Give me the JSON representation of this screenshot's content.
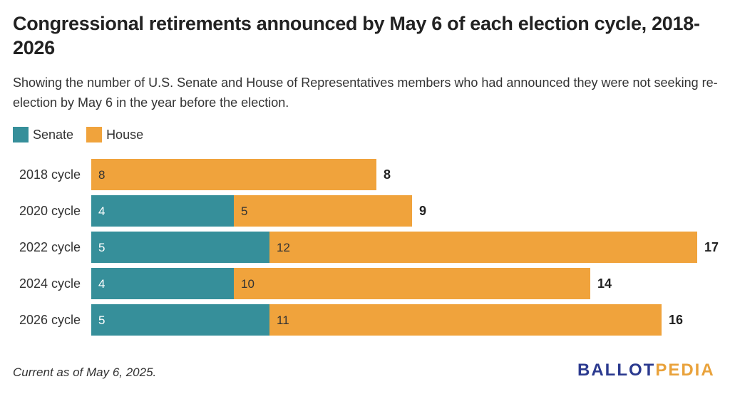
{
  "title": "Congressional retirements announced by May 6 of each election cycle, 2018-2026",
  "subtitle": "Showing the number of U.S. Senate and House of Representatives members who had announced they were not seeking re-election by May 6 in the year before the election.",
  "footnote": "Current as of May 6, 2025.",
  "logo": {
    "part1": "BALLOT",
    "part2": "PEDIA"
  },
  "colors": {
    "senate": "#368f9a",
    "house": "#f0a33c"
  },
  "chart_data": {
    "type": "bar",
    "orientation": "horizontal",
    "stacked": true,
    "categories": [
      "2018 cycle",
      "2020 cycle",
      "2022 cycle",
      "2024 cycle",
      "2026 cycle"
    ],
    "series": [
      {
        "name": "Senate",
        "color": "#368f9a",
        "values": [
          0,
          4,
          5,
          4,
          5
        ]
      },
      {
        "name": "House",
        "color": "#f0a33c",
        "values": [
          8,
          5,
          12,
          10,
          11
        ]
      }
    ],
    "totals": [
      8,
      9,
      17,
      14,
      16
    ],
    "xlim": [
      0,
      17
    ],
    "legend_position": "top-left",
    "grid": false
  }
}
